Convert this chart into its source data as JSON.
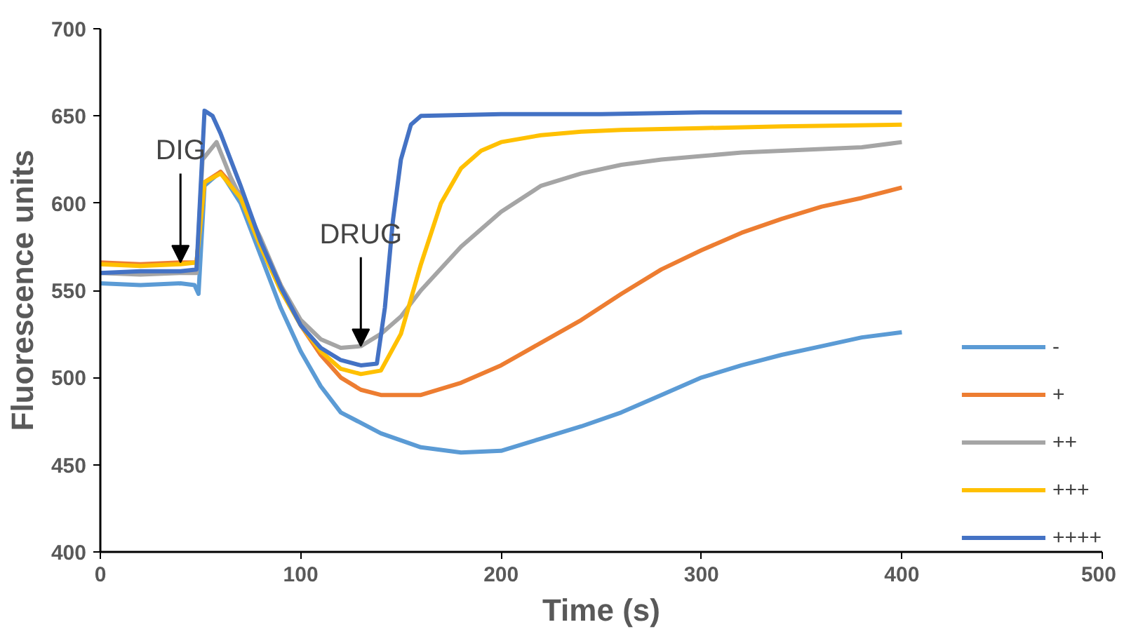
{
  "chart_data": {
    "type": "line",
    "xlabel": "Time (s)",
    "ylabel": "Fluorescence units",
    "xlim": [
      0,
      500
    ],
    "ylim": [
      400,
      700
    ],
    "xticks": [
      0,
      100,
      200,
      300,
      400,
      500
    ],
    "yticks": [
      400,
      450,
      500,
      550,
      600,
      650,
      700
    ],
    "grid": false,
    "legend": "right",
    "marker": "none",
    "line_style": "solid",
    "annotations": [
      {
        "text": "DIG",
        "x": 40,
        "y": 566
      },
      {
        "text": "DRUG",
        "x": 130,
        "y": 518
      }
    ],
    "series": [
      {
        "name": "-",
        "color": "#5b9bd5",
        "x": [
          0,
          20,
          40,
          47,
          49,
          52,
          60,
          70,
          80,
          90,
          100,
          110,
          120,
          140,
          160,
          180,
          200,
          220,
          240,
          260,
          280,
          300,
          320,
          340,
          360,
          380,
          400
        ],
        "values": [
          554,
          553,
          554,
          553,
          548,
          610,
          618,
          600,
          570,
          540,
          515,
          495,
          480,
          468,
          460,
          457,
          458,
          465,
          472,
          480,
          490,
          500,
          507,
          513,
          518,
          523,
          526
        ]
      },
      {
        "name": "+",
        "color": "#ed7d31",
        "x": [
          0,
          20,
          40,
          48,
          52,
          60,
          70,
          80,
          90,
          100,
          110,
          120,
          130,
          140,
          160,
          180,
          200,
          220,
          240,
          260,
          280,
          300,
          320,
          340,
          360,
          380,
          400
        ],
        "values": [
          566,
          565,
          566,
          566,
          612,
          618,
          605,
          578,
          553,
          530,
          513,
          500,
          493,
          490,
          490,
          497,
          507,
          520,
          533,
          548,
          562,
          573,
          583,
          591,
          598,
          603,
          609
        ]
      },
      {
        "name": "++",
        "color": "#a5a5a5",
        "x": [
          0,
          20,
          40,
          48,
          51,
          58,
          65,
          80,
          90,
          100,
          110,
          120,
          130,
          140,
          150,
          160,
          180,
          200,
          220,
          240,
          260,
          280,
          300,
          320,
          340,
          360,
          380,
          400
        ],
        "values": [
          560,
          559,
          560,
          560,
          625,
          635,
          615,
          580,
          553,
          533,
          522,
          517,
          518,
          525,
          535,
          550,
          575,
          595,
          610,
          617,
          622,
          625,
          627,
          629,
          630,
          631,
          632,
          635
        ]
      },
      {
        "name": "+++",
        "color": "#ffc000",
        "x": [
          0,
          20,
          40,
          48,
          52,
          60,
          70,
          80,
          90,
          100,
          110,
          120,
          130,
          140,
          150,
          160,
          170,
          180,
          190,
          200,
          220,
          240,
          260,
          300,
          340,
          400
        ],
        "values": [
          565,
          564,
          565,
          566,
          612,
          617,
          603,
          575,
          550,
          530,
          515,
          505,
          502,
          504,
          525,
          565,
          600,
          620,
          630,
          635,
          639,
          641,
          642,
          643,
          644,
          645
        ]
      },
      {
        "name": "++++",
        "color": "#4472c4",
        "x": [
          0,
          20,
          40,
          48,
          52,
          56,
          60,
          70,
          80,
          90,
          100,
          110,
          120,
          130,
          138,
          142,
          146,
          150,
          155,
          160,
          200,
          250,
          300,
          400
        ],
        "values": [
          560,
          561,
          561,
          562,
          653,
          650,
          640,
          610,
          578,
          552,
          530,
          517,
          510,
          507,
          508,
          540,
          590,
          625,
          645,
          650,
          651,
          651,
          652,
          652
        ]
      }
    ]
  }
}
